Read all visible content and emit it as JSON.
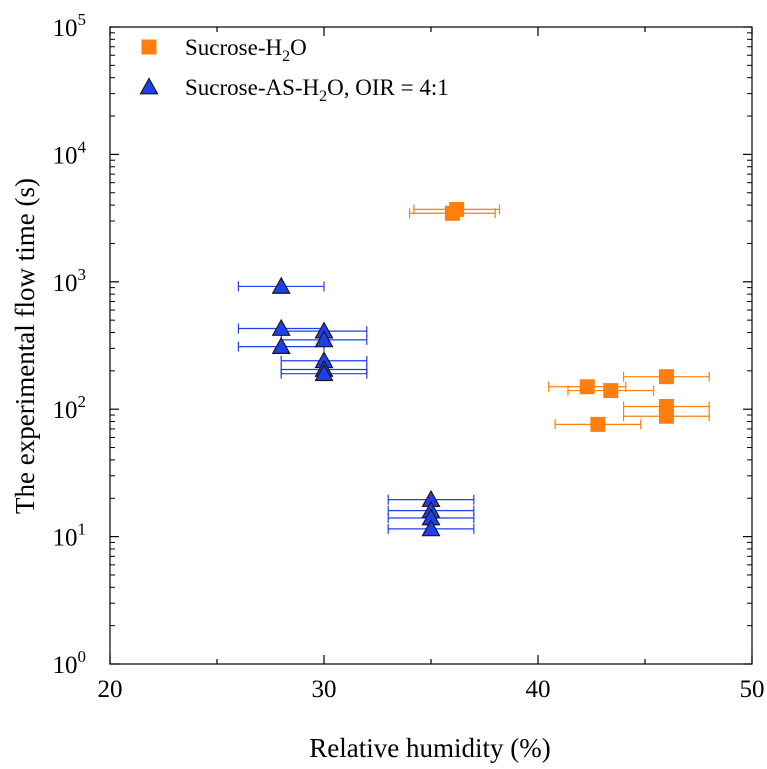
{
  "chart_data": {
    "type": "scatter",
    "xlabel": "Relative humidity (%)",
    "ylabel": "The experimental flow time (s)",
    "xlim": [
      20,
      50
    ],
    "ylim": [
      1,
      100000
    ],
    "yscale": "log",
    "x_ticks": [
      "20",
      "30",
      "40",
      "50"
    ],
    "y_tick_exponents": [
      "0",
      "1",
      "2",
      "3",
      "4",
      "5"
    ],
    "y_tick_base": "10",
    "grid": false,
    "legend_position": "top-left",
    "series": [
      {
        "name_parts": [
          "Sucrose-H",
          "2",
          "O"
        ],
        "marker": "square",
        "color": "#ff7f0e",
        "points": [
          {
            "x": 36.2,
            "y": 3700,
            "xerr": 2
          },
          {
            "x": 36.0,
            "y": 3450,
            "xerr": 2
          },
          {
            "x": 46.0,
            "y": 180,
            "xerr": 2
          },
          {
            "x": 42.3,
            "y": 150,
            "xerr": 1.8
          },
          {
            "x": 43.4,
            "y": 140,
            "xerr": 2
          },
          {
            "x": 46.0,
            "y": 105,
            "xerr": 2
          },
          {
            "x": 46.0,
            "y": 88,
            "xerr": 2
          },
          {
            "x": 42.8,
            "y": 76,
            "xerr": 2
          }
        ]
      },
      {
        "name_parts": [
          "Sucrose-AS-H",
          "2",
          "O, OIR = 4:1"
        ],
        "marker": "triangle",
        "color": "#1f3fef",
        "points": [
          {
            "x": 28.0,
            "y": 920,
            "xerr": 2
          },
          {
            "x": 28.0,
            "y": 430,
            "xerr": 2
          },
          {
            "x": 30.0,
            "y": 410,
            "xerr": 2
          },
          {
            "x": 30.0,
            "y": 350,
            "xerr": 2
          },
          {
            "x": 28.0,
            "y": 310,
            "xerr": 2
          },
          {
            "x": 30.0,
            "y": 240,
            "xerr": 2
          },
          {
            "x": 30.0,
            "y": 205,
            "xerr": 2
          },
          {
            "x": 30.0,
            "y": 190,
            "xerr": 2
          },
          {
            "x": 35.0,
            "y": 19.5,
            "xerr": 2
          },
          {
            "x": 35.0,
            "y": 16,
            "xerr": 2
          },
          {
            "x": 35.0,
            "y": 14,
            "xerr": 2
          },
          {
            "x": 35.0,
            "y": 11.5,
            "xerr": 2
          }
        ]
      }
    ]
  }
}
